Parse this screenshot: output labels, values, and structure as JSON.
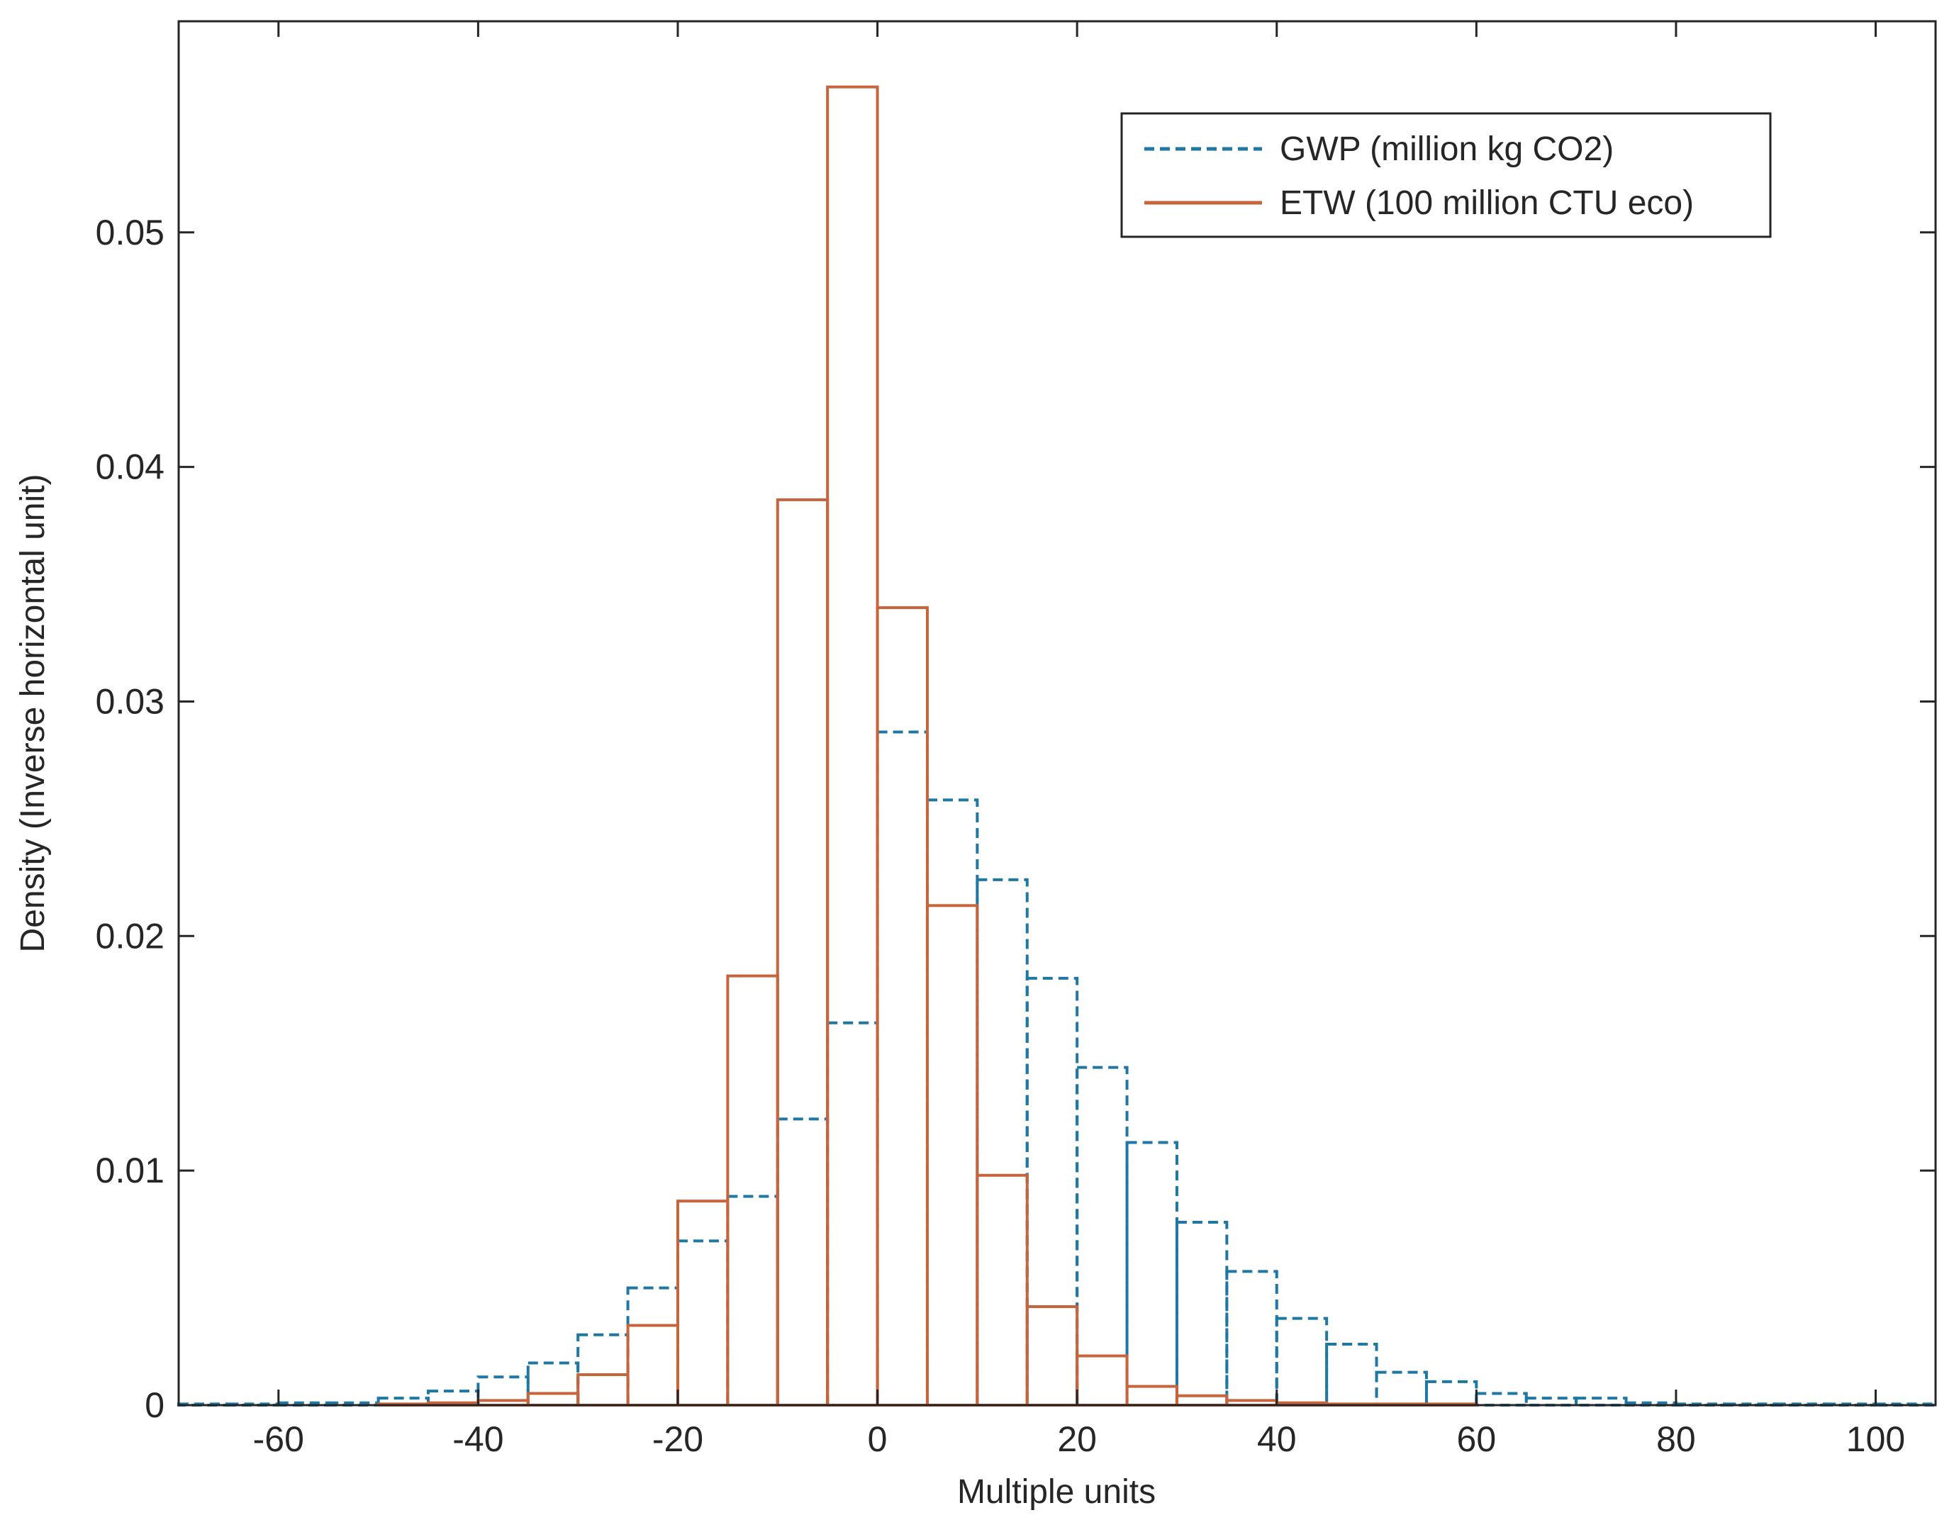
{
  "chart_data": {
    "type": "bar",
    "subtype": "histogram-stairs",
    "title": "",
    "xlabel": "Multiple units",
    "ylabel": "Density (Inverse horizontal unit)",
    "xlim": [
      -70,
      106
    ],
    "ylim": [
      0,
      0.059
    ],
    "xticks": [
      -60,
      -40,
      -20,
      0,
      20,
      40,
      60,
      80,
      100
    ],
    "xtick_labels": [
      "-60",
      "-40",
      "-20",
      "0",
      "20",
      "40",
      "60",
      "80",
      "100"
    ],
    "yticks": [
      0,
      0.01,
      0.02,
      0.03,
      0.04,
      0.05
    ],
    "ytick_labels": [
      "0",
      "0.01",
      "0.02",
      "0.03",
      "0.04",
      "0.05"
    ],
    "grid": false,
    "legend_position": "top-right",
    "bin_width": 5,
    "series": [
      {
        "name": "GWP (million kg CO2)",
        "color": "#1f77a4",
        "line_style": "dashed",
        "bin_edges": [
          -70,
          -65,
          -60,
          -55,
          -50,
          -45,
          -40,
          -35,
          -30,
          -25,
          -20,
          -15,
          -10,
          -5,
          0,
          5,
          10,
          15,
          20,
          25,
          30,
          35,
          40,
          45,
          50,
          55,
          60,
          65,
          70,
          75,
          80,
          85,
          90,
          95,
          100,
          106
        ],
        "values": [
          5e-05,
          5e-05,
          0.0001,
          0.0001,
          0.0003,
          0.0006,
          0.0012,
          0.0018,
          0.003,
          0.005,
          0.007,
          0.0089,
          0.0122,
          0.0163,
          0.0287,
          0.0258,
          0.0224,
          0.0182,
          0.0144,
          0.0112,
          0.0078,
          0.0057,
          0.0037,
          0.0026,
          0.0014,
          0.001,
          0.0005,
          0.0003,
          0.0003,
          0.0001,
          5e-05,
          5e-05,
          5e-05,
          5e-05,
          5e-05
        ]
      },
      {
        "name": "ETW (100 million CTU eco)",
        "color": "#c8643c",
        "line_style": "solid",
        "bin_edges": [
          -50,
          -45,
          -40,
          -35,
          -30,
          -25,
          -20,
          -15,
          -10,
          -5,
          0,
          5,
          10,
          15,
          20,
          25,
          30,
          35,
          40,
          45,
          50,
          55,
          60
        ],
        "values": [
          5e-05,
          0.0001,
          0.0002,
          0.0005,
          0.0013,
          0.0034,
          0.0087,
          0.0183,
          0.0386,
          0.0562,
          0.034,
          0.0213,
          0.0098,
          0.0042,
          0.0021,
          0.0008,
          0.0004,
          0.0002,
          0.0001,
          5e-05,
          5e-05,
          5e-05
        ]
      }
    ]
  }
}
